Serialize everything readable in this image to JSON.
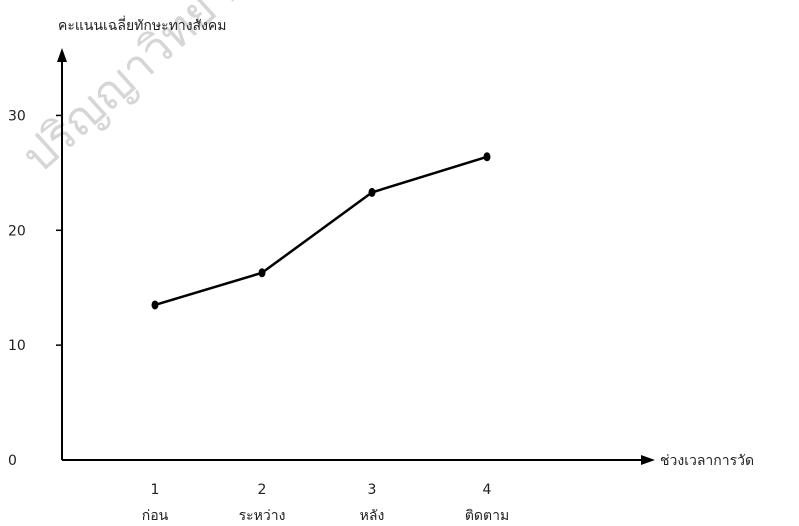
{
  "watermark": "ปริญญาวิทยานิพนธ์",
  "chart_data": {
    "type": "line",
    "title": "",
    "ylabel": "คะแนนเฉลี่ยทักษะทางสังคม",
    "xlabel": "ช่วงเวลาการวัด",
    "ylim": [
      0,
      35
    ],
    "yticks": [
      0,
      10,
      20,
      30
    ],
    "grid": false,
    "categories": [
      {
        "num": "1",
        "label": "ก่อน"
      },
      {
        "num": "2",
        "label": "ระหว่าง"
      },
      {
        "num": "3",
        "label": "หลัง"
      },
      {
        "num": "4",
        "label": "ติดตาม"
      }
    ],
    "series": [
      {
        "values": [
          13.5,
          16.3,
          23.3,
          26.4
        ],
        "color": "#000000"
      }
    ]
  }
}
